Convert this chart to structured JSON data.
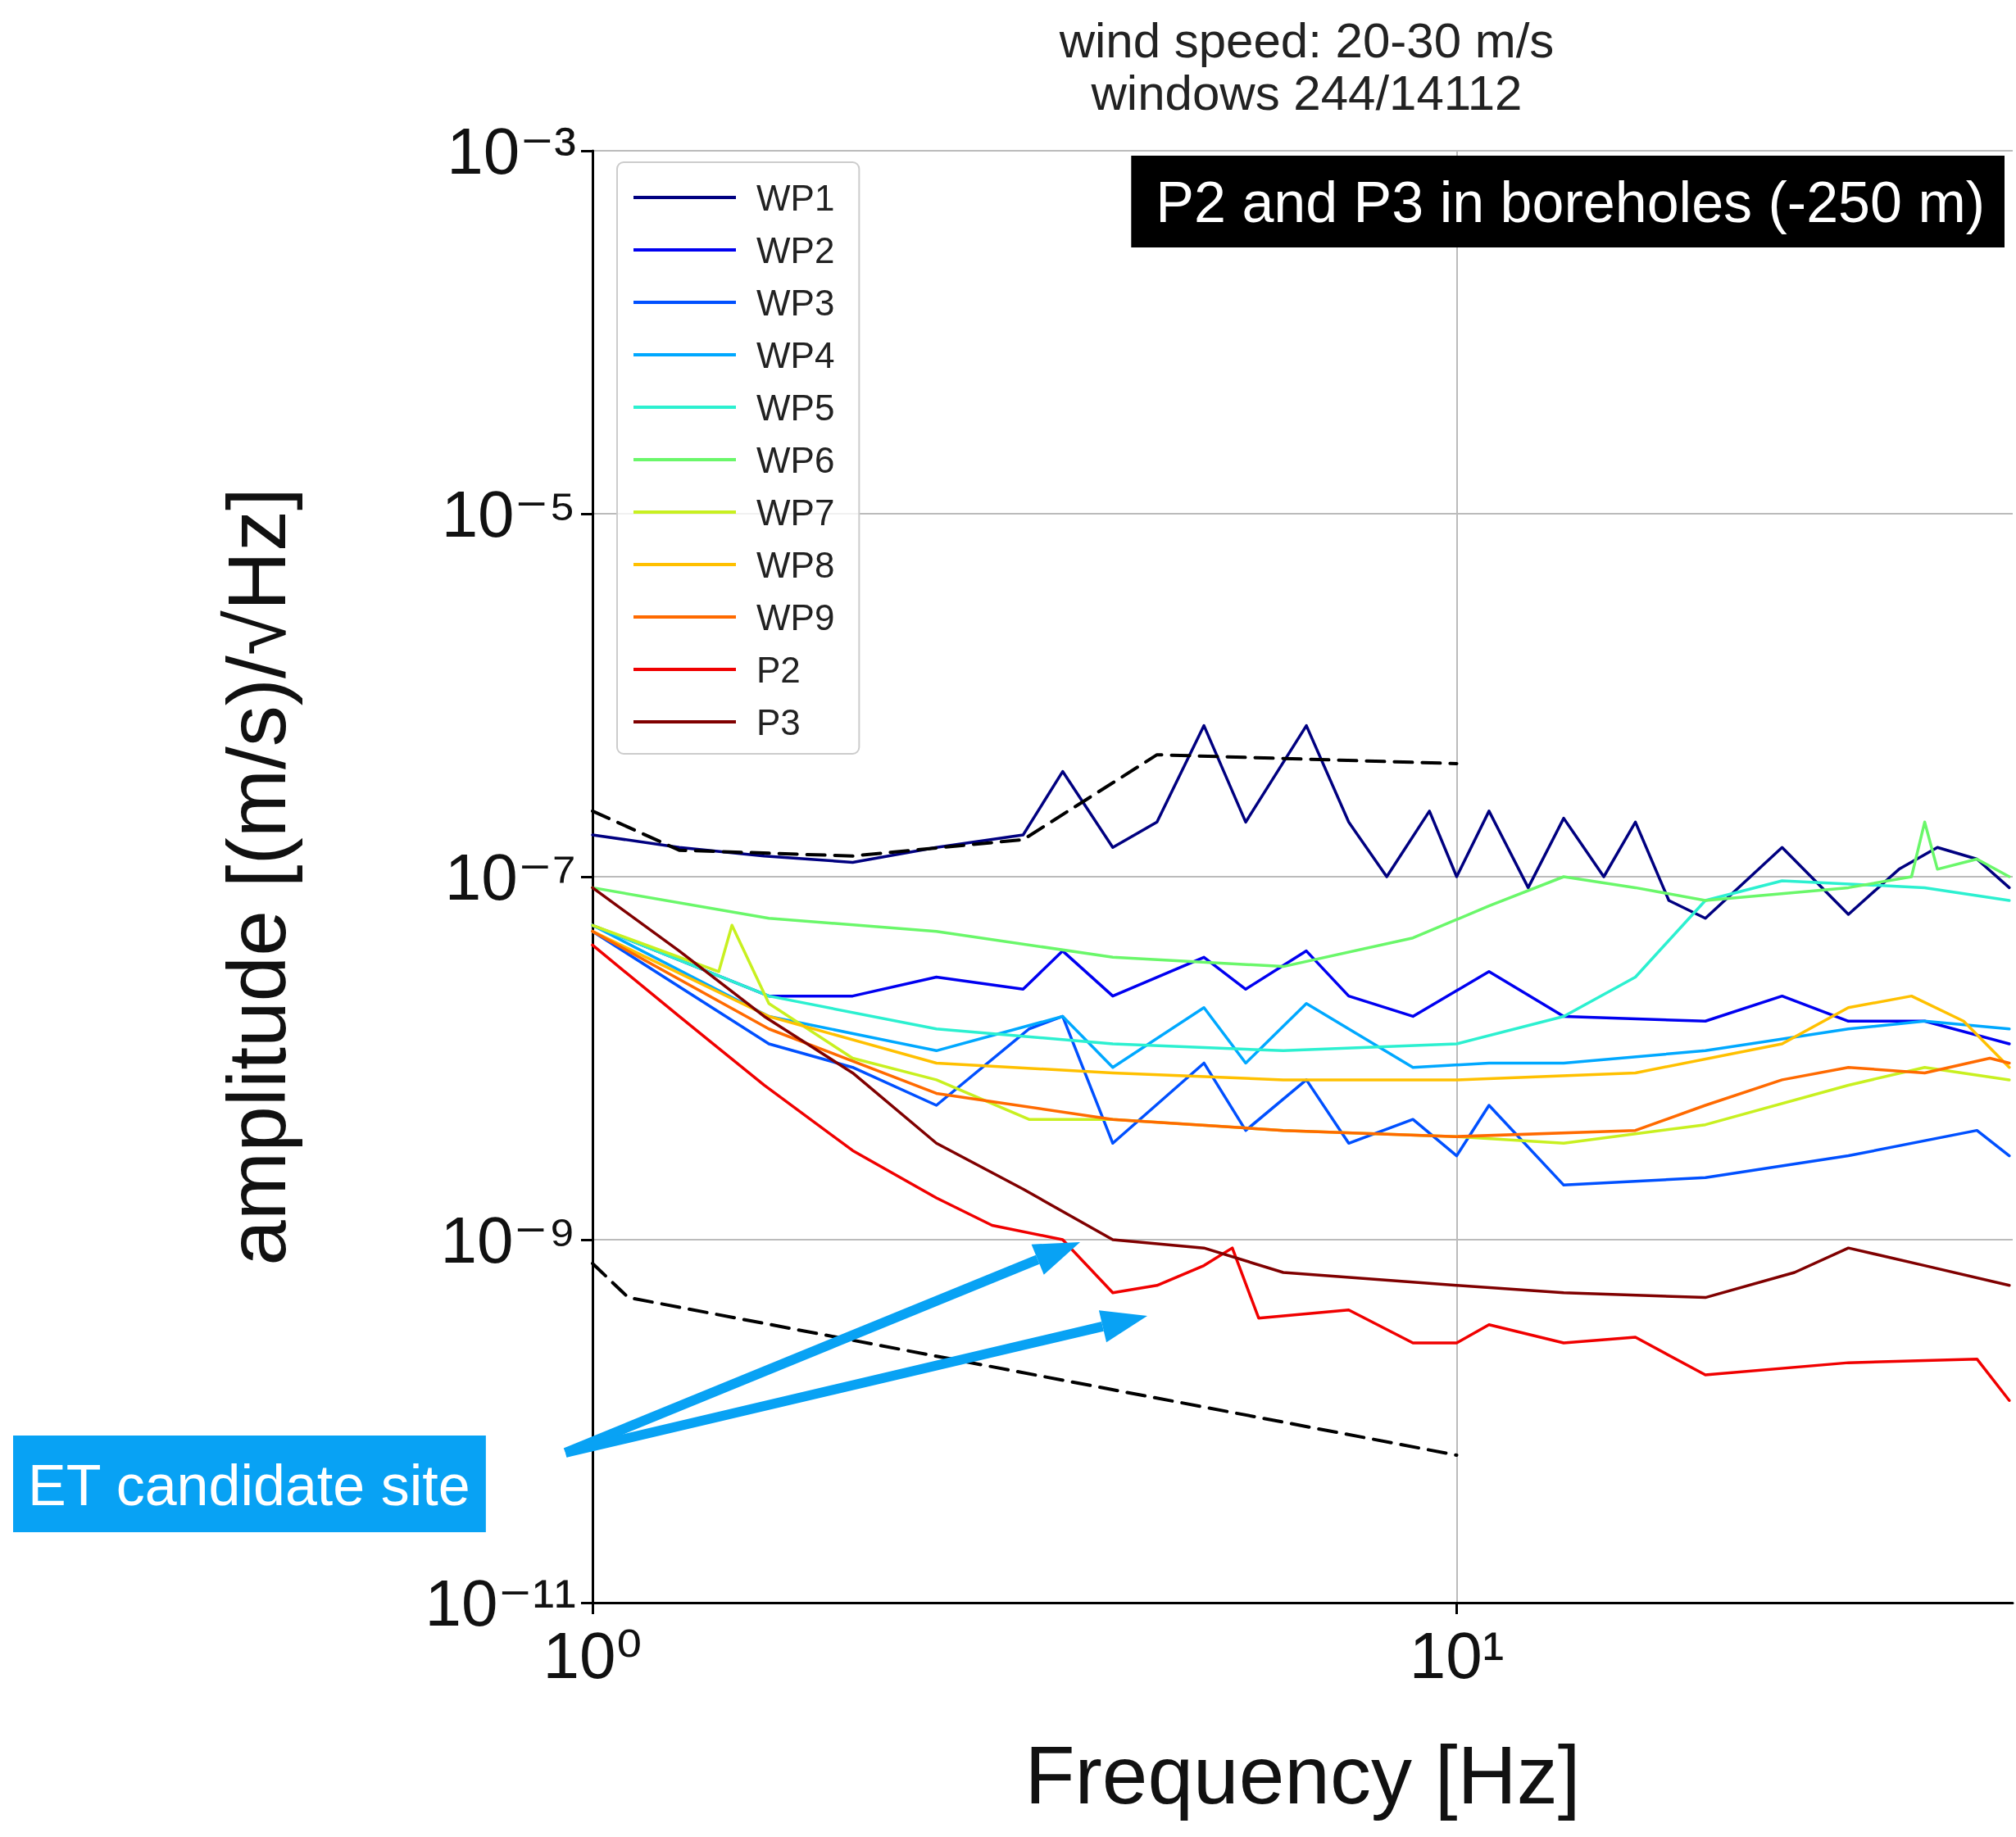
{
  "chart_data": {
    "type": "line",
    "title": "wind speed: 20-30 m/s",
    "subtitle": "windows 244/14112",
    "xlabel": "Frequency [Hz]",
    "ylabel": "amplitude [(m/s)/√Hz]",
    "log": "xy",
    "grid": true,
    "legend": "top left",
    "marker": "none",
    "xlim": [
      1,
      44
    ],
    "xticks": [
      {
        "value": 1,
        "label": "10⁰"
      },
      {
        "value": 10,
        "label": "10¹"
      }
    ],
    "ylim": [
      1e-11,
      0.001
    ],
    "yticks": [
      {
        "value": 1e-11,
        "label": "10⁻¹¹"
      },
      {
        "value": 1e-09,
        "label": "10⁻⁹"
      },
      {
        "value": 1e-07,
        "label": "10⁻⁷"
      },
      {
        "value": 1e-05,
        "label": "10⁻⁵"
      },
      {
        "value": 0.001,
        "label": "10⁻³"
      }
    ],
    "annotations": [
      "P2 and P3 in boreholes (-250 m)",
      "ET candidate site"
    ],
    "series": [
      {
        "name": "WP1",
        "color": "#000080",
        "x": [
          1,
          1.26,
          1.58,
          2,
          2.5,
          3.15,
          3.5,
          4,
          4.5,
          5.1,
          5.7,
          6.7,
          7.5,
          8.3,
          9.3,
          10,
          10.9,
          12.1,
          13.3,
          14.8,
          16.1,
          17.6,
          19.4,
          23.8,
          28.4,
          32.5,
          36,
          40,
          43.6
        ],
        "values": [
          1.7e-07,
          1.45e-07,
          1.3e-07,
          1.2e-07,
          1.45e-07,
          1.7e-07,
          3.8e-07,
          1.45e-07,
          2e-07,
          6.8e-07,
          2e-07,
          6.8e-07,
          2e-07,
          1e-07,
          2.3e-07,
          1e-07,
          2.3e-07,
          8.7e-08,
          2.1e-07,
          1e-07,
          2e-07,
          7.4e-08,
          5.9e-08,
          1.45e-07,
          6.2e-08,
          1.1e-07,
          1.45e-07,
          1.25e-07,
          8.7e-08
        ]
      },
      {
        "name": "WP2",
        "color": "#0000f0",
        "x": [
          1,
          1.6,
          2,
          2.5,
          3.15,
          3.5,
          4,
          5.1,
          5.7,
          6.7,
          7.5,
          8.9,
          10.9,
          13.3,
          19.4,
          23.8,
          28.4,
          34.8,
          43.6
        ],
        "values": [
          5.4e-08,
          2.2e-08,
          2.2e-08,
          2.8e-08,
          2.4e-08,
          3.9e-08,
          2.2e-08,
          3.6e-08,
          2.4e-08,
          3.9e-08,
          2.2e-08,
          1.7e-08,
          3e-08,
          1.7e-08,
          1.6e-08,
          2.2e-08,
          1.6e-08,
          1.6e-08,
          1.2e-08
        ]
      },
      {
        "name": "WP3",
        "color": "#0050ff",
        "x": [
          1,
          1.6,
          2,
          2.5,
          3.2,
          3.5,
          4,
          5.1,
          5.7,
          6.7,
          7.5,
          8.9,
          10,
          10.9,
          13.3,
          19.4,
          28.4,
          40,
          43.6
        ],
        "values": [
          5e-08,
          1.2e-08,
          8.9e-09,
          5.5e-09,
          1.45e-08,
          1.7e-08,
          3.4e-09,
          9.4e-09,
          4e-09,
          7.6e-09,
          3.4e-09,
          4.6e-09,
          2.9e-09,
          5.5e-09,
          2e-09,
          2.2e-09,
          2.9e-09,
          4e-09,
          2.9e-09
        ]
      },
      {
        "name": "WP4",
        "color": "#00a8ff",
        "x": [
          1,
          1.6,
          2.5,
          3.5,
          4,
          5.1,
          5.7,
          6.7,
          8.9,
          10.9,
          13.3,
          19.4,
          28.4,
          34.8,
          43.6
        ],
        "values": [
          5.4e-08,
          1.7e-08,
          1.1e-08,
          1.7e-08,
          8.9e-09,
          1.9e-08,
          9.4e-09,
          2e-08,
          8.9e-09,
          9.4e-09,
          9.4e-09,
          1.1e-08,
          1.45e-08,
          1.6e-08,
          1.45e-08
        ]
      },
      {
        "name": "WP5",
        "color": "#2cf0d0",
        "x": [
          1,
          1.6,
          2.5,
          4,
          6.3,
          10,
          13.3,
          16.1,
          19.4,
          23.8,
          34.8,
          43.6
        ],
        "values": [
          5.4e-08,
          2.2e-08,
          1.45e-08,
          1.2e-08,
          1.1e-08,
          1.2e-08,
          1.7e-08,
          2.8e-08,
          7.4e-08,
          9.5e-08,
          8.7e-08,
          7.4e-08
        ]
      },
      {
        "name": "WP6",
        "color": "#6af76a",
        "x": [
          1,
          1.6,
          2.5,
          4,
          6.3,
          8.9,
          10.9,
          13.3,
          16.1,
          19.4,
          28.4,
          33.6,
          34.8,
          36,
          40,
          43.6
        ],
        "values": [
          8.7e-08,
          5.9e-08,
          5e-08,
          3.6e-08,
          3.2e-08,
          4.6e-08,
          6.9e-08,
          1e-07,
          8.7e-08,
          7.4e-08,
          8.7e-08,
          1e-07,
          2e-07,
          1.1e-07,
          1.25e-07,
          1e-07
        ]
      },
      {
        "name": "WP7",
        "color": "#c8f020",
        "x": [
          1,
          1.4,
          1.45,
          1.6,
          2,
          2.5,
          3.2,
          4,
          6.3,
          10,
          13.3,
          19.4,
          28.4,
          34.8,
          43.6
        ],
        "values": [
          5.4e-08,
          3e-08,
          5.4e-08,
          2e-08,
          1e-08,
          7.6e-09,
          4.6e-09,
          4.6e-09,
          4e-09,
          3.7e-09,
          3.4e-09,
          4.3e-09,
          7.1e-09,
          8.9e-09,
          7.6e-09
        ]
      },
      {
        "name": "WP8",
        "color": "#ffc000",
        "x": [
          1,
          1.6,
          2.5,
          4,
          6.3,
          10,
          16.1,
          23.8,
          28.4,
          33.6,
          38.6,
          43.6
        ],
        "values": [
          5e-08,
          1.7e-08,
          9.4e-09,
          8.3e-09,
          7.6e-09,
          7.6e-09,
          8.3e-09,
          1.2e-08,
          1.9e-08,
          2.2e-08,
          1.6e-08,
          8.9e-09
        ]
      },
      {
        "name": "WP9",
        "color": "#ff6a00",
        "x": [
          1,
          1.6,
          2.5,
          4,
          6.3,
          10,
          16.1,
          19.4,
          23.8,
          28.4,
          34.8,
          41.4,
          43.6
        ],
        "values": [
          5e-08,
          1.45e-08,
          6.4e-09,
          4.6e-09,
          4e-09,
          3.7e-09,
          4e-09,
          5.5e-09,
          7.6e-09,
          8.9e-09,
          8.3e-09,
          1e-08,
          9.4e-09
        ]
      },
      {
        "name": "P2",
        "color": "#f00000",
        "x": [
          1,
          1.26,
          1.58,
          2,
          2.5,
          2.9,
          3.5,
          4,
          4.5,
          5.1,
          5.5,
          5.9,
          7.5,
          8.9,
          10,
          10.9,
          13.3,
          16.1,
          19.4,
          28.4,
          40,
          43.6
        ],
        "values": [
          4.2e-08,
          1.7e-08,
          7.1e-09,
          3.1e-09,
          1.7e-09,
          1.2e-09,
          1e-09,
          5.1e-10,
          5.6e-10,
          7.2e-10,
          9e-10,
          3.7e-10,
          4.1e-10,
          2.7e-10,
          2.7e-10,
          3.4e-10,
          2.7e-10,
          2.9e-10,
          1.8e-10,
          2.1e-10,
          2.2e-10,
          1.3e-10
        ]
      },
      {
        "name": "P3",
        "color": "#800000",
        "x": [
          1,
          1.26,
          1.58,
          2,
          2.5,
          3.15,
          4,
          5.1,
          6.3,
          10,
          13.3,
          19.4,
          24.6,
          28.4,
          34.8,
          43.6
        ],
        "values": [
          8.7e-08,
          3.9e-08,
          1.7e-08,
          8.3e-09,
          3.4e-09,
          1.9e-09,
          1e-09,
          9e-10,
          6.6e-10,
          5.6e-10,
          5.1e-10,
          4.8e-10,
          6.6e-10,
          9e-10,
          7.2e-10,
          5.6e-10
        ]
      },
      {
        "color": "#000000",
        "line_style": "dashed",
        "x": [
          1,
          1.26,
          2,
          3.15,
          4.5,
          10
        ],
        "values": [
          2.3e-07,
          1.4e-07,
          1.3e-07,
          1.6e-07,
          4.7e-07,
          4.2e-07
        ]
      },
      {
        "color": "#000000",
        "line_style": "dashed",
        "x": [
          1,
          1.1,
          10
        ],
        "values": [
          7.4e-10,
          4.8e-10,
          6.5e-11
        ]
      }
    ]
  }
}
